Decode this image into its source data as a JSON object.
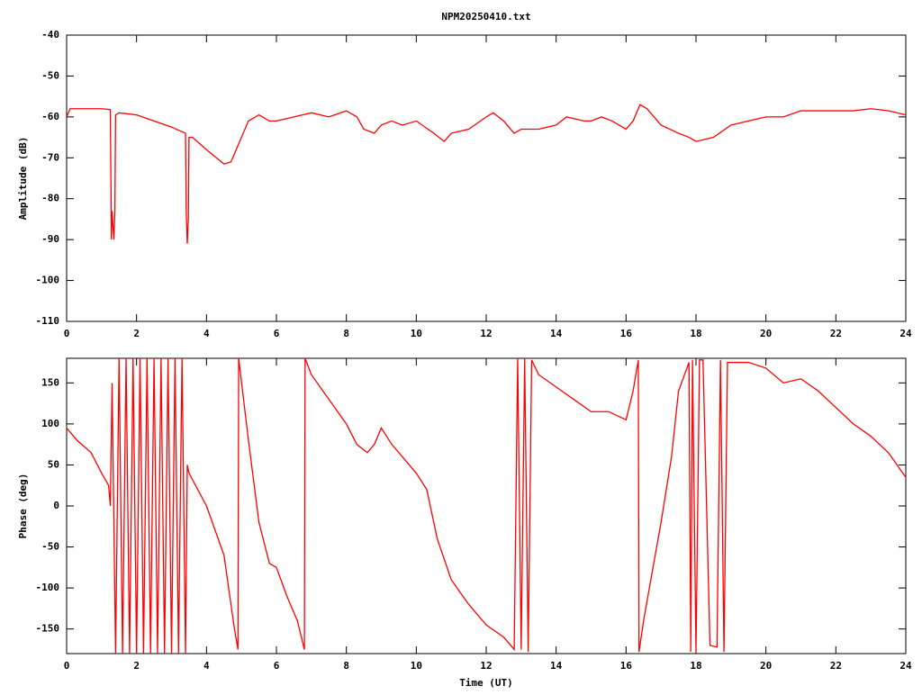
{
  "chart_data": [
    {
      "type": "line",
      "title": "NPM20250410.txt",
      "ylabel": "Amplitude (dB)",
      "color": "#ff0000",
      "grid": false,
      "xlim": [
        0,
        24
      ],
      "xticks": [
        0,
        2,
        4,
        6,
        8,
        10,
        12,
        14,
        16,
        18,
        20,
        22,
        24
      ],
      "ylim": [
        -110,
        -40
      ],
      "yticks": [
        -110,
        -100,
        -90,
        -80,
        -70,
        -60,
        -50,
        -40
      ],
      "x": [
        0,
        0.1,
        0.5,
        1.0,
        1.25,
        1.28,
        1.3,
        1.35,
        1.38,
        1.4,
        1.5,
        2,
        2.5,
        3,
        3.4,
        3.42,
        3.45,
        3.48,
        3.5,
        3.6,
        4,
        4.5,
        4.7,
        5,
        5.2,
        5.5,
        5.8,
        6,
        6.5,
        7,
        7.5,
        8,
        8.3,
        8.5,
        8.8,
        9,
        9.3,
        9.6,
        10,
        10.5,
        10.8,
        11,
        11.5,
        12,
        12.2,
        12.5,
        12.8,
        13,
        13.5,
        14,
        14.3,
        14.8,
        15,
        15.3,
        15.6,
        16,
        16.2,
        16.4,
        16.6,
        17,
        17.5,
        17.8,
        18,
        18.5,
        19,
        19.5,
        20,
        20.5,
        21,
        22,
        22.5,
        23,
        23.5,
        24
      ],
      "values": [
        -60,
        -58,
        -58,
        -58,
        -58.2,
        -90,
        -83,
        -90,
        -83,
        -59.5,
        -59,
        -59.5,
        -61,
        -62.5,
        -64,
        -83,
        -91,
        -85,
        -65,
        -65,
        -68,
        -71.5,
        -71,
        -65,
        -61,
        -59.5,
        -61,
        -61,
        -60,
        -59,
        -60,
        -58.5,
        -60,
        -63,
        -64,
        -62,
        -61,
        -62,
        -61,
        -64,
        -66,
        -64,
        -63,
        -60,
        -59,
        -61,
        -64,
        -63,
        -63,
        -62,
        -60,
        -61,
        -61,
        -60,
        -61,
        -63,
        -61,
        -57,
        -58,
        -62,
        -64,
        -65,
        -66,
        -65,
        -62,
        -61,
        -60,
        -60,
        -58.5,
        -58.5,
        -58.5,
        -58,
        -58.5,
        -59.5
      ]
    },
    {
      "type": "line",
      "xlabel": "Time (UT)",
      "ylabel": "Phase (deg)",
      "color": "#ff0000",
      "grid": false,
      "xlim": [
        0,
        24
      ],
      "xticks": [
        0,
        2,
        4,
        6,
        8,
        10,
        12,
        14,
        16,
        18,
        20,
        22,
        24
      ],
      "ylim": [
        -180,
        180
      ],
      "yticks": [
        -150,
        -100,
        -50,
        0,
        50,
        100,
        150
      ],
      "x": [
        0,
        0.3,
        0.7,
        1,
        1.2,
        1.25,
        1.3,
        1.4,
        1.5,
        1.6,
        1.7,
        1.8,
        1.9,
        2.0,
        2.1,
        2.2,
        2.3,
        2.4,
        2.5,
        2.6,
        2.7,
        2.8,
        2.9,
        3.0,
        3.1,
        3.2,
        3.3,
        3.4,
        3.45,
        3.5,
        4,
        4.5,
        4.8,
        4.9,
        4.92,
        5.2,
        5.5,
        5.8,
        6,
        6.3,
        6.6,
        6.8,
        6.82,
        7,
        7.5,
        8,
        8.3,
        8.6,
        8.8,
        9,
        9.3,
        9.6,
        10,
        10.3,
        10.6,
        11,
        11.5,
        12,
        12.5,
        12.8,
        12.9,
        13,
        13.1,
        13.2,
        13.3,
        13.5,
        14,
        14.5,
        15,
        15.5,
        16,
        16.2,
        16.35,
        16.37,
        16.5,
        17,
        17.3,
        17.5,
        17.8,
        17.85,
        17.9,
        18,
        18.1,
        18.2,
        18.4,
        18.6,
        18.7,
        18.8,
        18.9,
        19.5,
        20,
        20.5,
        21,
        21.5,
        22,
        22.5,
        23,
        23.5,
        24
      ],
      "values": [
        95,
        80,
        65,
        40,
        25,
        0,
        150,
        -180,
        180,
        -180,
        180,
        -180,
        180,
        -180,
        180,
        -180,
        180,
        -180,
        180,
        -180,
        180,
        -180,
        180,
        -180,
        180,
        -180,
        180,
        -180,
        50,
        40,
        0,
        -60,
        -150,
        -175,
        180,
        80,
        -20,
        -70,
        -75,
        -110,
        -140,
        -175,
        180,
        160,
        130,
        100,
        75,
        65,
        75,
        95,
        75,
        60,
        40,
        20,
        -40,
        -90,
        -120,
        -145,
        -160,
        -175,
        180,
        -175,
        180,
        -178,
        178,
        160,
        145,
        130,
        115,
        115,
        105,
        140,
        178,
        -178,
        -140,
        -20,
        60,
        140,
        175,
        -178,
        178,
        -178,
        178,
        178,
        -170,
        -172,
        178,
        -178,
        175,
        175,
        168,
        150,
        155,
        140,
        120,
        100,
        85,
        65,
        35
      ]
    }
  ]
}
